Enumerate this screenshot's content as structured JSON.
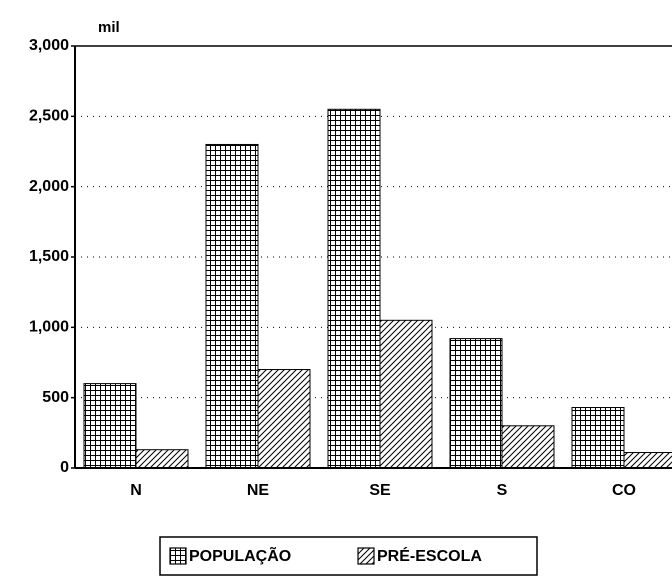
{
  "chart_data": {
    "type": "bar",
    "y_unit_label": "mil",
    "categories": [
      "N",
      "NE",
      "SE",
      "S",
      "CO"
    ],
    "series": [
      {
        "name": "POPULAÇÃO",
        "color": "#000000",
        "pattern": "grid",
        "values": [
          600,
          2300,
          2550,
          920,
          430
        ]
      },
      {
        "name": "PRÉ-ESCOLA",
        "color": "#000000",
        "pattern": "diagonal",
        "values": [
          130,
          700,
          1050,
          300,
          110
        ]
      }
    ],
    "ylim": [
      0,
      3000
    ],
    "yticks": [
      0,
      500,
      {
        "value": 1000,
        "label": "1,000"
      },
      {
        "value": 1500,
        "label": "1,500"
      },
      {
        "value": 2000,
        "label": "2,000"
      },
      {
        "value": 2500,
        "label": "2,500"
      },
      {
        "value": 3000,
        "label": "3,000"
      }
    ],
    "grid": true,
    "legend": "bottom"
  }
}
